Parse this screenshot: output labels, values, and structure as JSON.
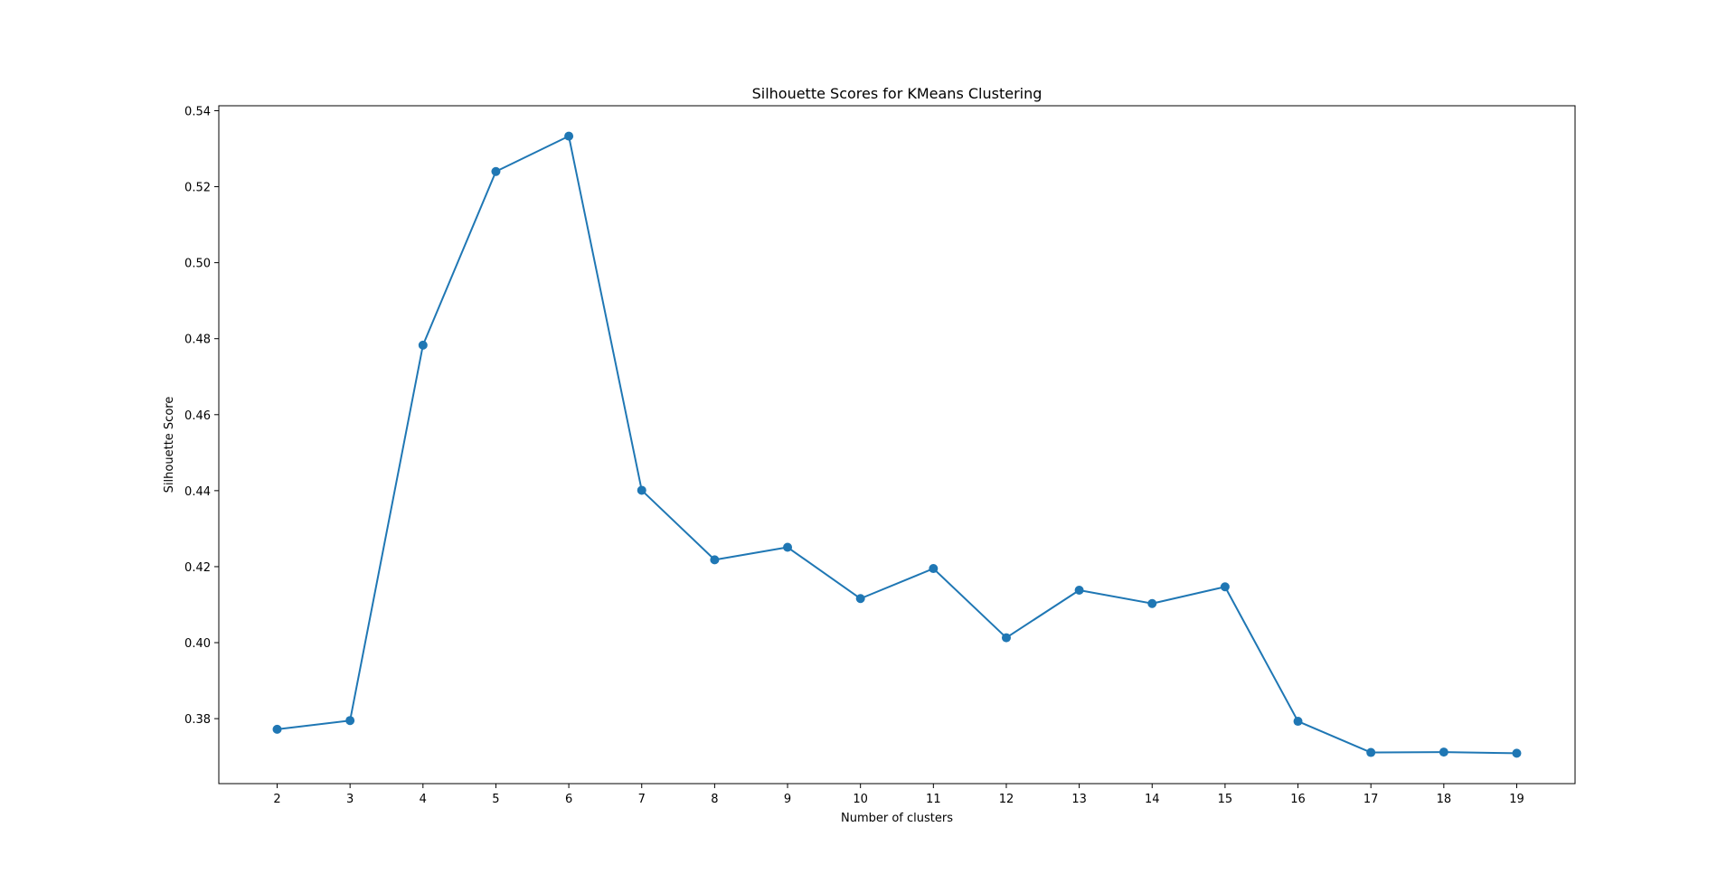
{
  "chart_data": {
    "type": "line",
    "title": "Silhouette Scores for KMeans Clustering",
    "xlabel": "Number of clusters",
    "ylabel": "Silhouette Score",
    "x": [
      2,
      3,
      4,
      5,
      6,
      7,
      8,
      9,
      10,
      11,
      12,
      13,
      14,
      15,
      16,
      17,
      18,
      19
    ],
    "series": [
      {
        "values": [
          0.3772,
          0.3795,
          0.4783,
          0.524,
          0.5333,
          0.4401,
          0.4218,
          0.4251,
          0.4116,
          0.4195,
          0.4013,
          0.4138,
          0.4103,
          0.4147,
          0.3793,
          0.3711,
          0.3712,
          0.3709
        ],
        "color": "#1f77b4",
        "marker": "circle"
      }
    ],
    "xticks": [
      "2",
      "3",
      "4",
      "5",
      "6",
      "7",
      "8",
      "9",
      "10",
      "11",
      "12",
      "13",
      "14",
      "15",
      "16",
      "17",
      "18",
      "19"
    ],
    "yticks": [
      "0.38",
      "0.40",
      "0.42",
      "0.44",
      "0.46",
      "0.48",
      "0.50",
      "0.52",
      "0.54"
    ],
    "ytick_values": [
      0.38,
      0.4,
      0.42,
      0.44,
      0.46,
      0.48,
      0.5,
      0.52,
      0.54
    ],
    "xlim": [
      1.2,
      19.8
    ],
    "ylim": [
      0.3629,
      0.5413
    ],
    "grid": false,
    "legend": false
  }
}
